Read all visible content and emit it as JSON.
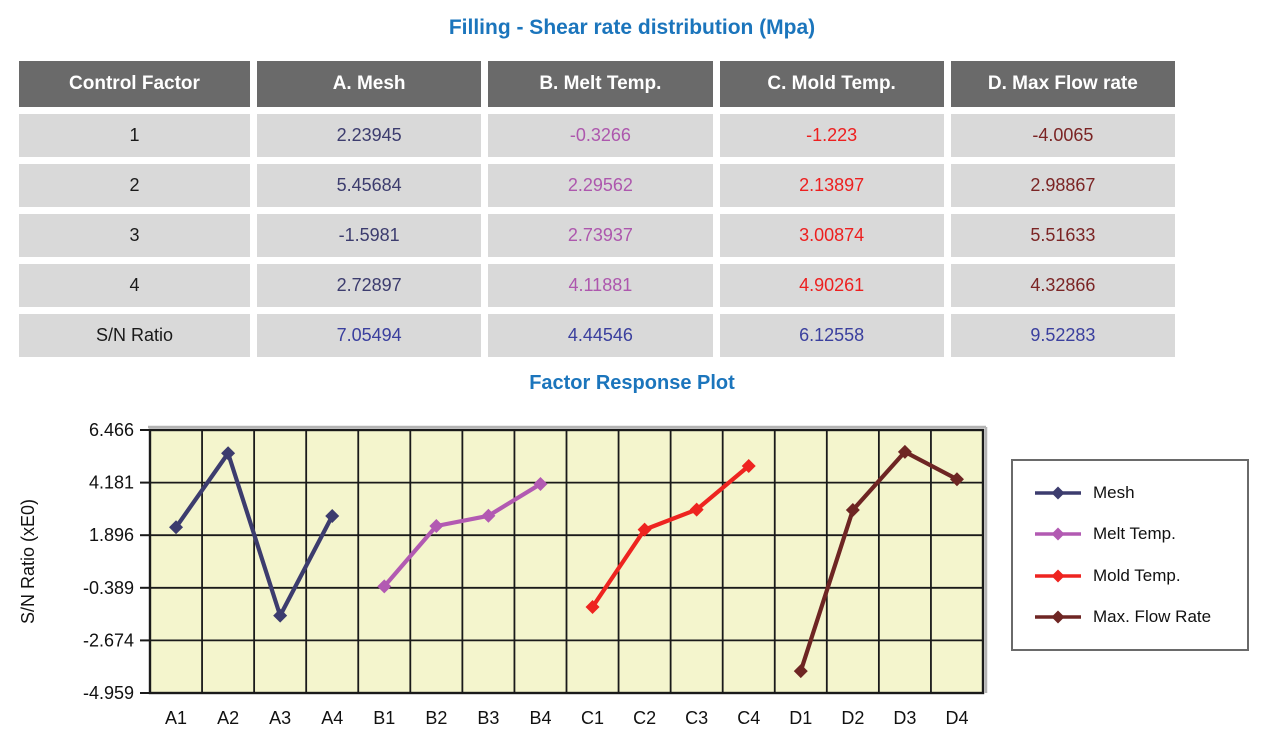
{
  "page": {
    "table_title": "Filling - Shear rate distribution (Mpa)",
    "chart_title": "Factor Response Plot",
    "title_color": "#1b75bc"
  },
  "table": {
    "headers": [
      "Control Factor",
      "A. Mesh",
      "B. Melt Temp.",
      "C. Mold Temp.",
      "D. Max Flow rate"
    ],
    "rows": [
      {
        "label": "1",
        "values": [
          "2.23945",
          "-0.3266",
          "-1.223",
          "-4.0065"
        ]
      },
      {
        "label": "2",
        "values": [
          "5.45684",
          "2.29562",
          "2.13897",
          "2.98867"
        ]
      },
      {
        "label": "3",
        "values": [
          "-1.5981",
          "2.73937",
          "3.00874",
          "5.51633"
        ]
      },
      {
        "label": "4",
        "values": [
          "2.72897",
          "4.11881",
          "4.90261",
          "4.32866"
        ]
      },
      {
        "label": "S/N Ratio",
        "values": [
          "7.05494",
          "4.44546",
          "6.12558",
          "9.52283"
        ]
      }
    ],
    "value_colors": [
      "#3c3c6e",
      "#ad57ad",
      "#ed1f1f",
      "#7b2424"
    ],
    "sn_row_color": "#3a3f9e",
    "label_color": "#1a1a1a",
    "header_bg": "#6a6a6a",
    "header_text_color": "#ffffff",
    "cell_bg": "#d9d9d9"
  },
  "chart_data": {
    "type": "line",
    "title": "Factor Response Plot",
    "ylabel": "S/N Ratio (xE0)",
    "xlabel": "",
    "categories": [
      "A1",
      "A2",
      "A3",
      "A4",
      "B1",
      "B2",
      "B3",
      "B4",
      "C1",
      "C2",
      "C3",
      "C4",
      "D1",
      "D2",
      "D3",
      "D4"
    ],
    "ytick_labels": [
      "6.466",
      "4.181",
      "1.896",
      "-0.389",
      "-2.674",
      "-4.959"
    ],
    "ylim": [
      -4.959,
      6.466
    ],
    "grid": true,
    "plot_bg": "#f4f5cd",
    "grid_color": "#1a1a1a",
    "legend_position": "right",
    "marker": "diamond",
    "series": [
      {
        "name": "Mesh",
        "color": "#3c3c6e",
        "categories": [
          "A1",
          "A2",
          "A3",
          "A4"
        ],
        "values": [
          2.23945,
          5.45684,
          -1.5981,
          2.72897
        ]
      },
      {
        "name": "Melt Temp.",
        "color": "#b25ab2",
        "categories": [
          "B1",
          "B2",
          "B3",
          "B4"
        ],
        "values": [
          -0.3266,
          2.29562,
          2.73937,
          4.11881
        ]
      },
      {
        "name": "Mold Temp.",
        "color": "#ee2420",
        "categories": [
          "C1",
          "C2",
          "C3",
          "C4"
        ],
        "values": [
          -1.223,
          2.13897,
          3.00874,
          4.90261
        ]
      },
      {
        "name": "Max. Flow Rate",
        "color": "#6e2523",
        "categories": [
          "D1",
          "D2",
          "D3",
          "D4"
        ],
        "values": [
          -4.0065,
          2.98867,
          5.51633,
          4.32866
        ]
      }
    ]
  }
}
